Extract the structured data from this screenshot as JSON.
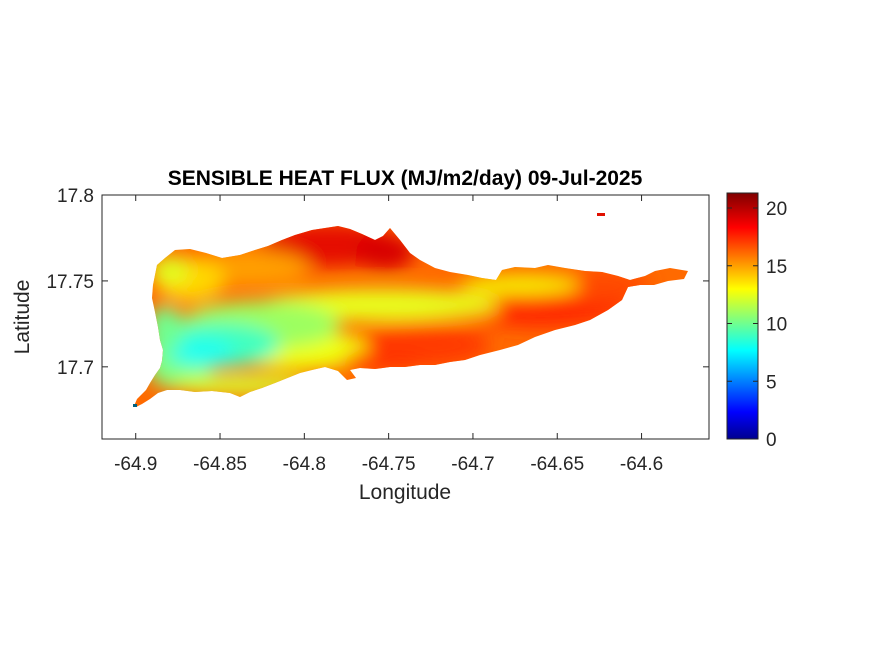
{
  "map": {
    "title": "SENSIBLE HEAT FLUX (MJ/m2/day) 09-Jul-2025",
    "xlabel": "Longitude",
    "ylabel": "Latitude",
    "x_ticks": [
      "-64.9",
      "-64.85",
      "-64.8",
      "-64.75",
      "-64.7",
      "-64.65",
      "-64.6"
    ],
    "x_tick_values": [
      -64.9,
      -64.85,
      -64.8,
      -64.75,
      -64.7,
      -64.65,
      -64.6
    ],
    "y_ticks": [
      "17.8",
      "17.75",
      "17.7"
    ],
    "y_tick_values": [
      17.8,
      17.75,
      17.7
    ],
    "xlim": [
      -64.92,
      -64.56
    ],
    "ylim": [
      17.658,
      17.8
    ],
    "colormap": "jet",
    "colorbar": {
      "ticks": [
        "0",
        "5",
        "10",
        "15",
        "20"
      ],
      "tick_values": [
        0,
        5,
        10,
        15,
        20
      ],
      "range": [
        0,
        21.3
      ]
    },
    "colors": {
      "jet_low": "#00008f",
      "jet_cyan": "#00ffff",
      "jet_yellow": "#ffff00",
      "jet_red": "#ff0000",
      "jet_high": "#800000",
      "axis": "#262626"
    }
  }
}
